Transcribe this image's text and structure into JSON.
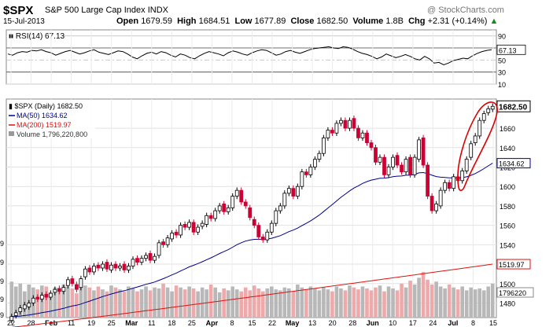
{
  "header": {
    "symbol": "$SPX",
    "name": "S&P 500 Large Cap Index",
    "exchange": "INDX",
    "credit": "@ StockCharts.com",
    "date": "15-Jul-2013",
    "open_label": "Open",
    "open": "1679.59",
    "high_label": "High",
    "high": "1684.51",
    "low_label": "Low",
    "low": "1677.89",
    "close_label": "Close",
    "close": "1682.50",
    "volume_label": "Volume",
    "volume": "1.8B",
    "chg_label": "Chg",
    "chg": "+2.31 (+0.14%)",
    "chg_arrow": "▲"
  },
  "colors": {
    "up": "#000000",
    "down": "#cc0033",
    "ma50": "#00008b",
    "ma200": "#dd1111",
    "volume_down": "#eeaaaa",
    "volume_up": "#b8b8b8",
    "annotation": "#dd0000"
  },
  "chart_data": {
    "type": "candlestick",
    "title": "$SPX S&P 500 Large Cap Index INDX",
    "rsi": {
      "label": "RSI(14) 67.13",
      "value_label": "67.13",
      "ylim": [
        10,
        100
      ],
      "ticks": [
        "90",
        "70",
        "50",
        "30",
        "10"
      ],
      "values": [
        60,
        58,
        62,
        64,
        63,
        66,
        65,
        67,
        64,
        62,
        58,
        61,
        64,
        66,
        63,
        60,
        62,
        65,
        67,
        63,
        61,
        59,
        62,
        65,
        64,
        60,
        55,
        52,
        57,
        61,
        63,
        60,
        64,
        62,
        58,
        55,
        60,
        58,
        54,
        52,
        57,
        61,
        64,
        62,
        60,
        57,
        62,
        65,
        63,
        60,
        58,
        62,
        65,
        67,
        66,
        62,
        58,
        60,
        64,
        66,
        63,
        61,
        64,
        67,
        69,
        70,
        71,
        72,
        70,
        69,
        72,
        71,
        68,
        64,
        61,
        59,
        56,
        52,
        55,
        60,
        57,
        54,
        56,
        59,
        56,
        52,
        50,
        56,
        52,
        45,
        46,
        42,
        45,
        49,
        51,
        53,
        52,
        57,
        61,
        64,
        66,
        67
      ]
    },
    "legend": {
      "price": "$SPX (Daily) 1682.50",
      "ma50": "MA(50) 1634.62",
      "ma200": "MA(200) 1519.97",
      "volume": "Volume 1,796,220,800"
    },
    "price_axis": {
      "ylim": [
        1465,
        1690
      ],
      "ticks": [
        "1660",
        "1640",
        "1620",
        "1600",
        "1580",
        "1560",
        "1540",
        "1520",
        "1500",
        "1480"
      ],
      "last_label": "1682.50",
      "ma50_label": "1634.62",
      "ma200_label": "1519.97",
      "volume_label": "1796220"
    },
    "left_axis_fragments": [
      "9",
      "9",
      "9",
      "9",
      "9"
    ],
    "ma50_start": 1466,
    "ma200_start": 1455,
    "ma200_end": 1520,
    "prices": [
      {
        "o": 1462,
        "c": 1466
      },
      {
        "o": 1467,
        "c": 1470
      },
      {
        "o": 1471,
        "c": 1475
      },
      {
        "o": 1474,
        "c": 1478
      },
      {
        "o": 1476,
        "c": 1480
      },
      {
        "o": 1480,
        "c": 1485
      },
      {
        "o": 1486,
        "c": 1484
      },
      {
        "o": 1484,
        "c": 1488
      },
      {
        "o": 1489,
        "c": 1486
      },
      {
        "o": 1486,
        "c": 1490
      },
      {
        "o": 1491,
        "c": 1494
      },
      {
        "o": 1495,
        "c": 1492
      },
      {
        "o": 1492,
        "c": 1496
      },
      {
        "o": 1498,
        "c": 1504
      },
      {
        "o": 1505,
        "c": 1500
      },
      {
        "o": 1499,
        "c": 1494
      },
      {
        "o": 1496,
        "c": 1505
      },
      {
        "o": 1507,
        "c": 1515
      },
      {
        "o": 1516,
        "c": 1512
      },
      {
        "o": 1512,
        "c": 1518
      },
      {
        "o": 1519,
        "c": 1516
      },
      {
        "o": 1516,
        "c": 1520
      },
      {
        "o": 1522,
        "c": 1515
      },
      {
        "o": 1514,
        "c": 1519
      },
      {
        "o": 1520,
        "c": 1516
      },
      {
        "o": 1516,
        "c": 1518
      },
      {
        "o": 1520,
        "c": 1514
      },
      {
        "o": 1514,
        "c": 1518
      },
      {
        "o": 1518,
        "c": 1525
      },
      {
        "o": 1526,
        "c": 1522
      },
      {
        "o": 1522,
        "c": 1526
      },
      {
        "o": 1526,
        "c": 1529
      },
      {
        "o": 1531,
        "c": 1524
      },
      {
        "o": 1524,
        "c": 1528
      },
      {
        "o": 1529,
        "c": 1542
      },
      {
        "o": 1543,
        "c": 1540
      },
      {
        "o": 1540,
        "c": 1547
      },
      {
        "o": 1546,
        "c": 1552
      },
      {
        "o": 1553,
        "c": 1550
      },
      {
        "o": 1550,
        "c": 1560
      },
      {
        "o": 1561,
        "c": 1558
      },
      {
        "o": 1558,
        "c": 1563
      },
      {
        "o": 1563,
        "c": 1553
      },
      {
        "o": 1553,
        "c": 1558
      },
      {
        "o": 1559,
        "c": 1562
      },
      {
        "o": 1561,
        "c": 1570
      },
      {
        "o": 1570,
        "c": 1567
      },
      {
        "o": 1567,
        "c": 1575
      },
      {
        "o": 1575,
        "c": 1580
      },
      {
        "o": 1582,
        "c": 1574
      },
      {
        "o": 1574,
        "c": 1578
      },
      {
        "o": 1578,
        "c": 1590
      },
      {
        "o": 1590,
        "c": 1596
      },
      {
        "o": 1596,
        "c": 1584
      },
      {
        "o": 1584,
        "c": 1580
      },
      {
        "o": 1578,
        "c": 1568
      },
      {
        "o": 1566,
        "c": 1560
      },
      {
        "o": 1560,
        "c": 1548
      },
      {
        "o": 1548,
        "c": 1545
      },
      {
        "o": 1545,
        "c": 1553
      },
      {
        "o": 1553,
        "c": 1562
      },
      {
        "o": 1562,
        "c": 1575
      },
      {
        "o": 1575,
        "c": 1580
      },
      {
        "o": 1580,
        "c": 1593
      },
      {
        "o": 1593,
        "c": 1598
      },
      {
        "o": 1598,
        "c": 1590
      },
      {
        "o": 1590,
        "c": 1600
      },
      {
        "o": 1600,
        "c": 1615
      },
      {
        "o": 1615,
        "c": 1612
      },
      {
        "o": 1612,
        "c": 1620
      },
      {
        "o": 1620,
        "c": 1628
      },
      {
        "o": 1628,
        "c": 1634
      },
      {
        "o": 1634,
        "c": 1650
      },
      {
        "o": 1650,
        "c": 1658
      },
      {
        "o": 1658,
        "c": 1655
      },
      {
        "o": 1655,
        "c": 1665
      },
      {
        "o": 1665,
        "c": 1668
      },
      {
        "o": 1668,
        "c": 1660
      },
      {
        "o": 1660,
        "c": 1668
      },
      {
        "o": 1670,
        "c": 1660
      },
      {
        "o": 1660,
        "c": 1650
      },
      {
        "o": 1650,
        "c": 1655
      },
      {
        "o": 1655,
        "c": 1645
      },
      {
        "o": 1645,
        "c": 1640
      },
      {
        "o": 1640,
        "c": 1625
      },
      {
        "o": 1625,
        "c": 1630
      },
      {
        "o": 1630,
        "c": 1612
      },
      {
        "o": 1612,
        "c": 1620
      },
      {
        "o": 1620,
        "c": 1630
      },
      {
        "o": 1632,
        "c": 1622
      },
      {
        "o": 1622,
        "c": 1615
      },
      {
        "o": 1615,
        "c": 1628
      },
      {
        "o": 1630,
        "c": 1612
      },
      {
        "o": 1612,
        "c": 1630
      },
      {
        "o": 1628,
        "c": 1648
      },
      {
        "o": 1650,
        "c": 1622
      },
      {
        "o": 1622,
        "c": 1590
      },
      {
        "o": 1590,
        "c": 1575
      },
      {
        "o": 1575,
        "c": 1582
      },
      {
        "o": 1580,
        "c": 1596
      },
      {
        "o": 1596,
        "c": 1604
      },
      {
        "o": 1604,
        "c": 1598
      },
      {
        "o": 1598,
        "c": 1610
      },
      {
        "o": 1610,
        "c": 1606
      },
      {
        "o": 1606,
        "c": 1616
      },
      {
        "o": 1616,
        "c": 1628
      },
      {
        "o": 1630,
        "c": 1644
      },
      {
        "o": 1645,
        "c": 1652
      },
      {
        "o": 1652,
        "c": 1668
      },
      {
        "o": 1668,
        "c": 1675
      },
      {
        "o": 1676,
        "c": 1680
      },
      {
        "o": 1679.59,
        "c": 1682.5
      }
    ],
    "volume_ylim": [
      1470,
      1530
    ],
    "volumes": [
      1502,
      1497,
      1500,
      1492,
      1499,
      1496,
      1494,
      1498,
      1497,
      1491,
      1496,
      1495,
      1499,
      1497,
      1495,
      1490,
      1501,
      1498,
      1496,
      1493,
      1497,
      1494,
      1492,
      1498,
      1496,
      1494,
      1492,
      1497,
      1495,
      1492,
      1494,
      1497,
      1493,
      1496,
      1495,
      1500,
      1496,
      1492,
      1498,
      1496,
      1494,
      1497,
      1495,
      1492,
      1496,
      1494,
      1499,
      1496,
      1491,
      1495,
      1493,
      1497,
      1494,
      1492,
      1496,
      1493,
      1498,
      1495,
      1492,
      1495,
      1497,
      1494,
      1493,
      1496,
      1495,
      1492,
      1499,
      1496,
      1494,
      1497,
      1495,
      1493,
      1496,
      1494,
      1492,
      1497,
      1495,
      1493,
      1498,
      1496,
      1494,
      1497,
      1495,
      1493,
      1496,
      1498,
      1492,
      1497,
      1495,
      1493,
      1500,
      1496,
      1503,
      1499,
      1506,
      1512,
      1504,
      1499,
      1502,
      1497,
      1495,
      1499,
      1496,
      1494,
      1497,
      1493,
      1496,
      1494,
      1495,
      1493,
      1497,
      1500
    ],
    "x_labels": [
      "22",
      "28",
      "Feb",
      "11",
      "19",
      "25",
      "Mar",
      "11",
      "18",
      "25",
      "Apr",
      "8",
      "15",
      "22",
      "May",
      "13",
      "20",
      "28",
      "Jun",
      "10",
      "17",
      "24",
      "Jul",
      "8",
      "15"
    ]
  }
}
